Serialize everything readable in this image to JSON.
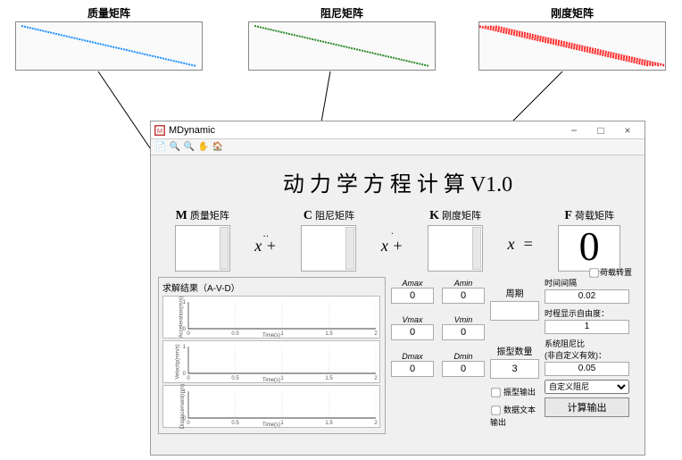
{
  "previews": {
    "mass": {
      "label": "质量矩阵",
      "color": "#1e90ff",
      "bands": 1
    },
    "damp": {
      "label": "阻尼矩阵",
      "color": "#2e8b2e",
      "bands": 1
    },
    "stiff": {
      "label": "刚度矩阵",
      "color": "#ff1a1a",
      "bands": 5
    }
  },
  "window": {
    "title": "MDynamic"
  },
  "app_title": "动 力 学 方 程 计 算   V1.0",
  "matrices": {
    "M": "质量矩阵",
    "C": "阻尼矩阵",
    "K": "刚度矩阵",
    "F": "荷载矩阵"
  },
  "load_swap_label": "荷载转置",
  "results_label": "求解结果（A-V-D）",
  "charts": {
    "xlabel": "Time(s)",
    "xticks": [
      "0",
      "0.5",
      "1",
      "1.5",
      "2"
    ],
    "ylabels": [
      "Acceleration(m/s)",
      "Velocity(mm/s)",
      "Displacement(mm)"
    ]
  },
  "extrema": {
    "Amax": "0",
    "Amin": "0",
    "Vmax": "0",
    "Vmin": "0",
    "Dmax": "0",
    "Dmin": "0"
  },
  "period": {
    "label": "周期",
    "value": ""
  },
  "mode_count": {
    "label": "振型数量",
    "value": "3"
  },
  "chk_mode_out": "振型输出",
  "chk_text_out": "数据文本输出",
  "time_step": {
    "label": "时间间隔",
    "value": "0.02"
  },
  "dof": {
    "label": "时程显示自由度：",
    "value": "1"
  },
  "damping_ratio": {
    "label1": "系统阻尼比",
    "label2": "(非自定义有效)：",
    "value": "0.05"
  },
  "damping_select": {
    "value": "自定义阻尼"
  },
  "calc_btn": "计算输出"
}
